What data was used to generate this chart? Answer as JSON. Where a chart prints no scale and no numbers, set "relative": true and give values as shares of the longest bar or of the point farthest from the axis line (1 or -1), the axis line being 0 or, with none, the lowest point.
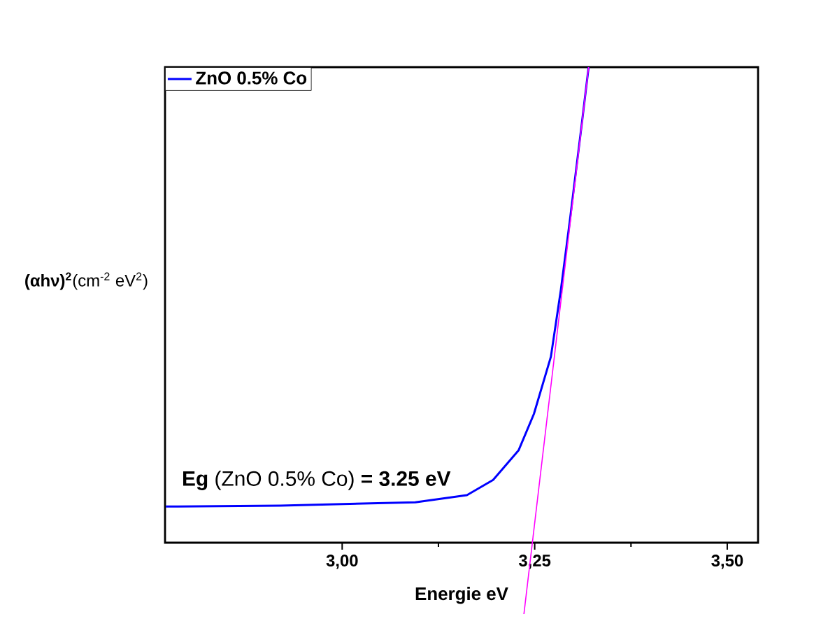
{
  "chart_data": {
    "type": "line",
    "relative": true,
    "xlabel": "Energie eV",
    "ylabel": "**(αhν)$^{2}$**(cm$^{-2}$ eV$^{2}$)",
    "xlim": [
      2.77,
      3.54
    ],
    "xticks": [
      {
        "value": 3.0,
        "label": "3,00"
      },
      {
        "value": 3.25,
        "label": "3,25"
      },
      {
        "value": 3.5,
        "label": "3,50"
      }
    ],
    "legend": "top left",
    "annotations": [
      "**Eg** (ZnO 0.5% Co) **= 3.25 eV**"
    ],
    "series": [
      {
        "name": "ZnO 0.5% Co",
        "color": "#0000ff",
        "x": [
          2.771,
          2.92,
          3.095,
          3.162,
          3.196,
          3.229,
          3.249,
          3.271,
          3.284,
          3.296,
          3.311,
          3.32
        ],
        "values": [
          0.076,
          0.078,
          0.085,
          0.1,
          0.132,
          0.194,
          0.271,
          0.391,
          0.532,
          0.682,
          0.879,
          1.0
        ]
      },
      {
        "color": "#ff00ff",
        "x": [
          3.236,
          3.32
        ],
        "values": [
          -0.15,
          1.0
        ]
      }
    ]
  }
}
